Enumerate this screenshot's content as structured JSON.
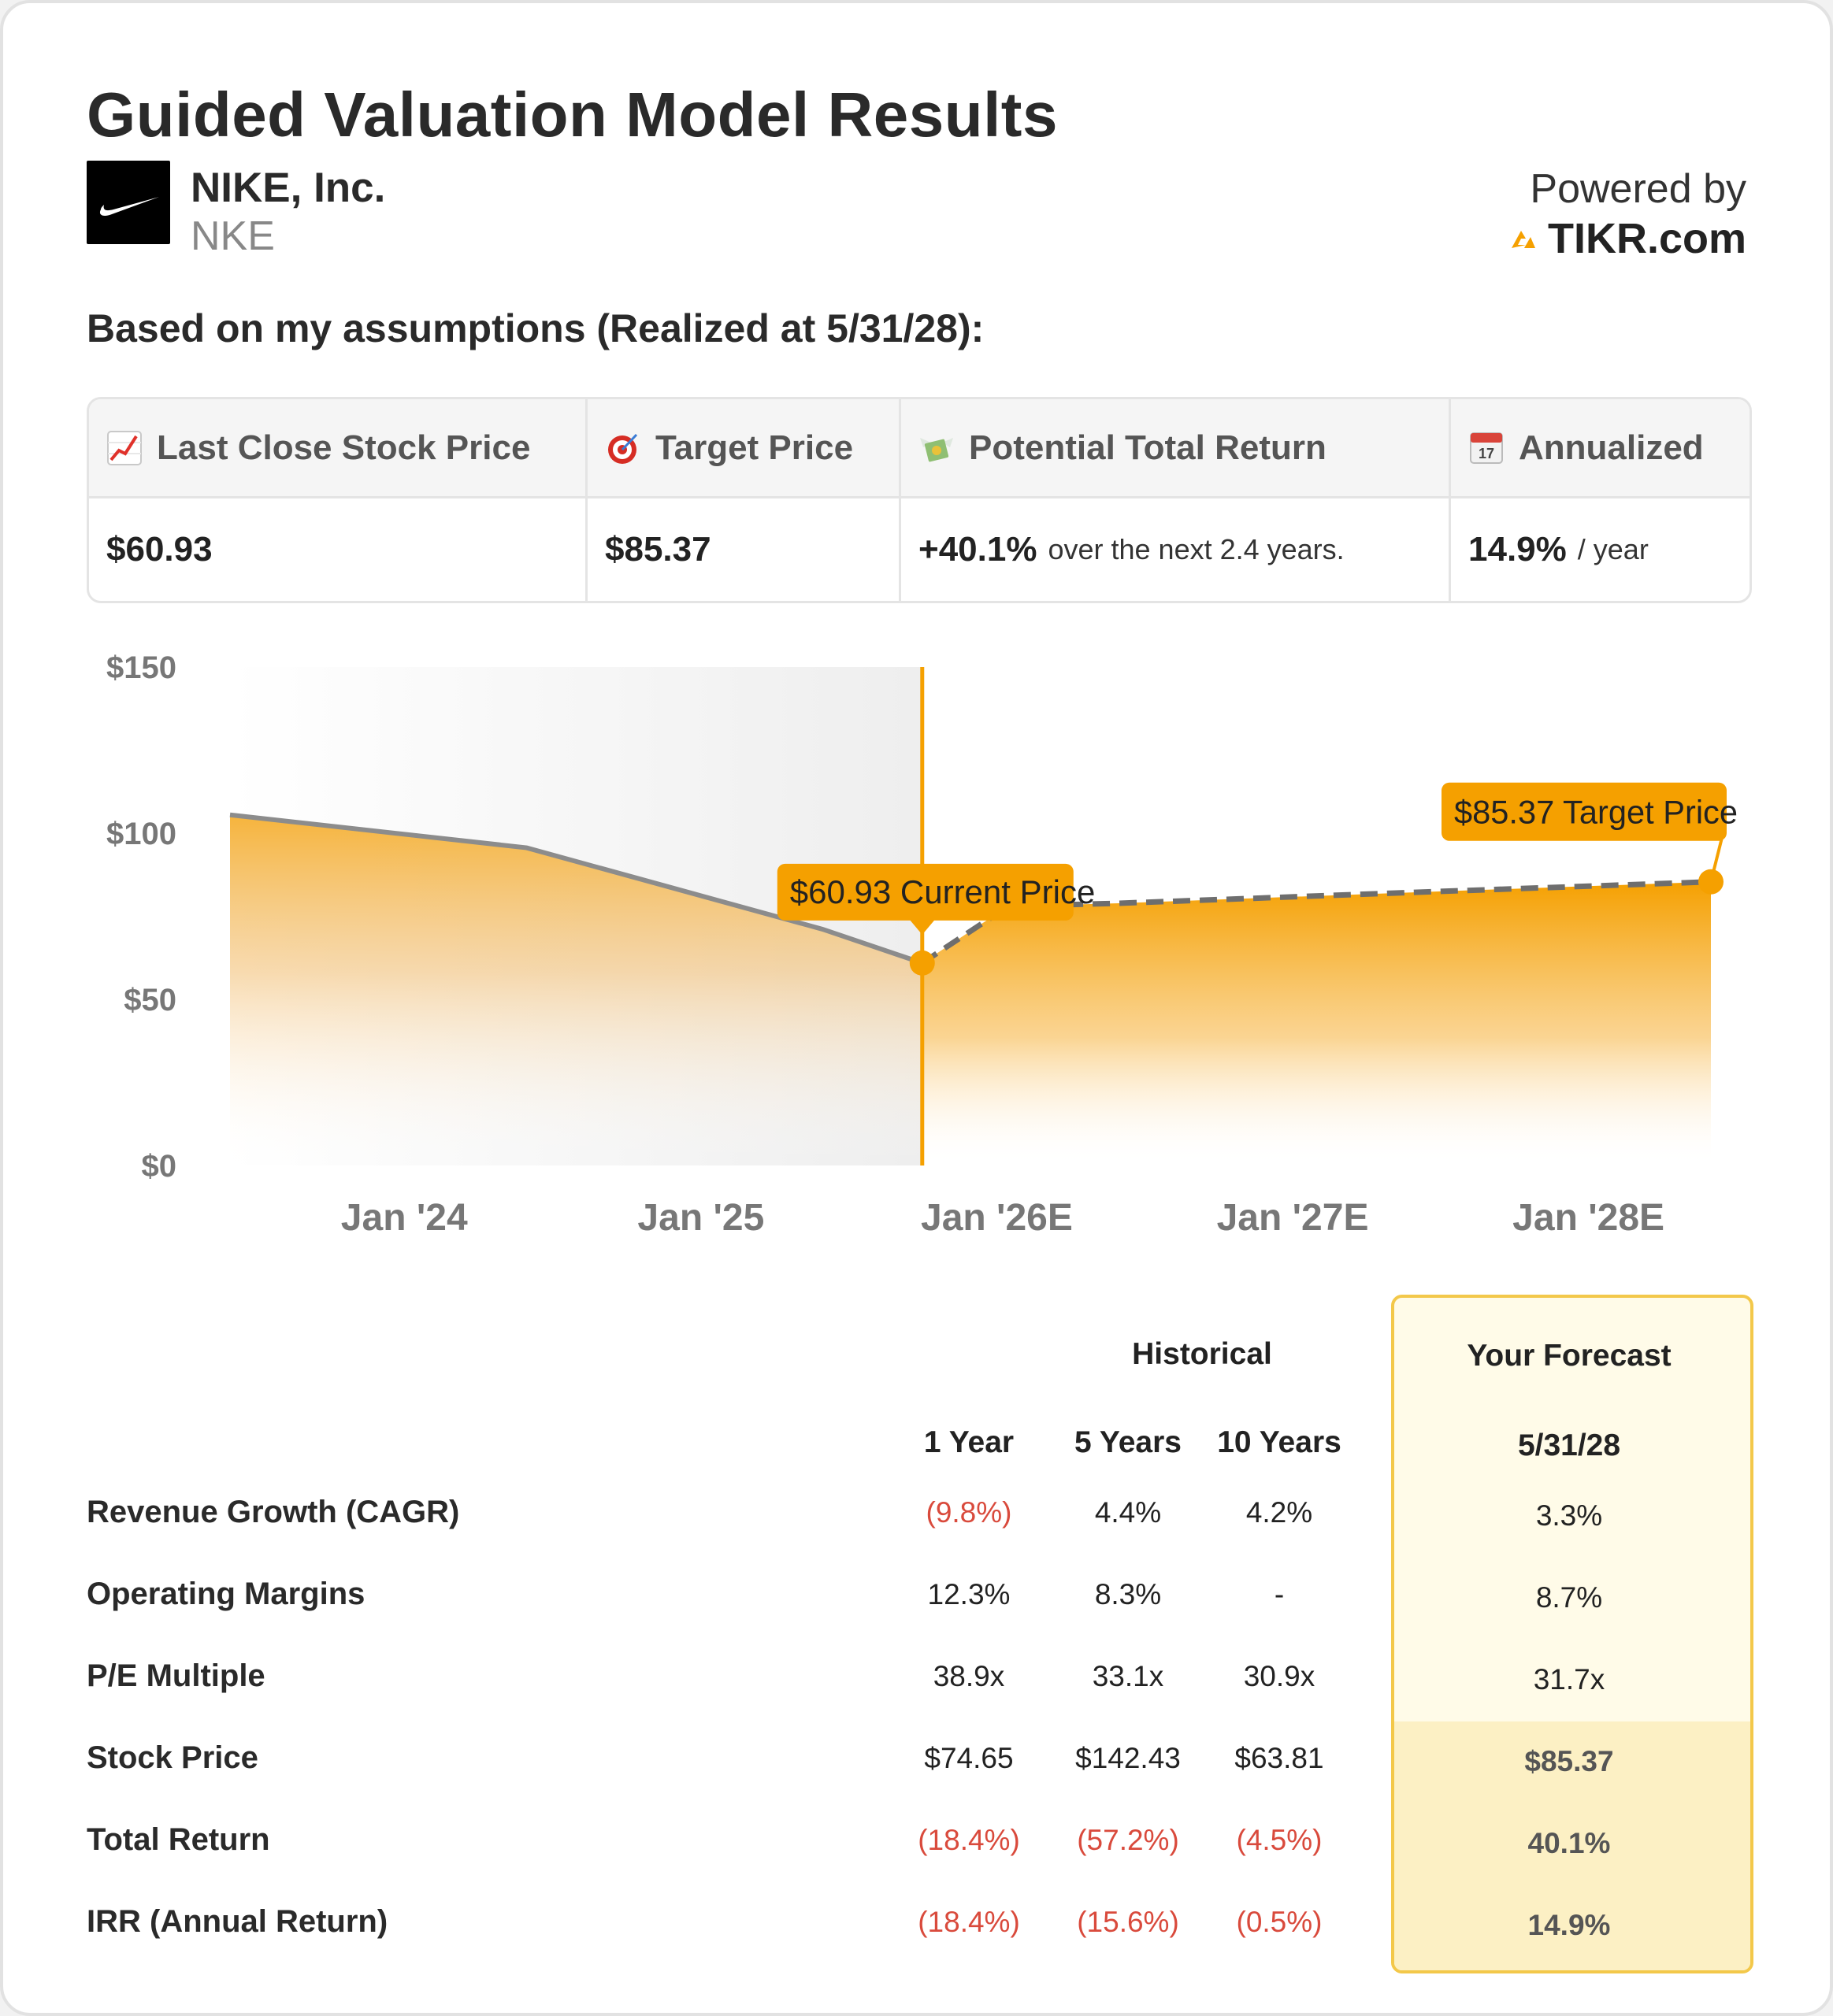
{
  "header": {
    "title": "Guided Valuation Model Results",
    "company_name": "NIKE, Inc.",
    "ticker": "NKE",
    "powered_by": "Powered by",
    "brand": "TIKR.com",
    "assumptions": "Based on my assumptions (Realized at 5/31/28):"
  },
  "kpis": [
    {
      "icon": "chart-increasing-icon",
      "label": "Last Close Stock Price",
      "value": "$60.93",
      "suffix": ""
    },
    {
      "icon": "target-icon",
      "label": "Target Price",
      "value": "$85.37",
      "suffix": ""
    },
    {
      "icon": "money-wings-icon",
      "label": "Potential Total Return",
      "value": "+40.1%",
      "suffix": "over the next 2.4 years."
    },
    {
      "icon": "calendar-icon",
      "label": "Annualized",
      "value": "14.9%",
      "suffix": "/ year"
    }
  ],
  "chart_data": {
    "type": "area",
    "y_ticks": [
      "$150",
      "$100",
      "$50",
      "$0"
    ],
    "ylim": [
      0,
      150
    ],
    "x_ticks": [
      "Jan '24",
      "Jan '25",
      "Jan '26E",
      "Jan '27E",
      "Jan '28E"
    ],
    "historical": {
      "x": [
        "2023-05-31",
        "2024-05-31",
        "2025-05-31",
        "2025-10-01"
      ],
      "y": [
        105.5,
        95.6,
        71.1,
        60.93
      ]
    },
    "forecast": {
      "x": [
        "2025-10-01",
        "2026-01-15",
        "2026-05-31",
        "2027-05-31",
        "2028-05-31"
      ],
      "y": [
        60.93,
        78.0,
        78.9,
        82.2,
        85.37
      ]
    },
    "current": {
      "x": "2025-10-01",
      "y": 60.93,
      "label": "$60.93 Current Price"
    },
    "target": {
      "x": "2028-05-31",
      "y": 85.37,
      "label": "$85.37 Target Price"
    },
    "accent_color": "#f5a000",
    "line_color": "#8c8c8c"
  },
  "table": {
    "historical_label": "Historical",
    "forecast_label": "Your Forecast",
    "columns": [
      "1 Year",
      "5 Years",
      "10 Years"
    ],
    "forecast_date": "5/31/28",
    "rows": [
      {
        "label": "Revenue Growth (CAGR)",
        "values": [
          "(9.8%)",
          "4.4%",
          "4.2%"
        ],
        "forecast": "3.3%"
      },
      {
        "label": "Operating Margins",
        "values": [
          "12.3%",
          "8.3%",
          "-"
        ],
        "forecast": "8.7%"
      },
      {
        "label": "P/E Multiple",
        "values": [
          "38.9x",
          "33.1x",
          "30.9x"
        ],
        "forecast": "31.7x"
      },
      {
        "label": "Stock Price",
        "values": [
          "$74.65",
          "$142.43",
          "$63.81"
        ],
        "forecast": "$85.37"
      },
      {
        "label": "Total Return",
        "values": [
          "(18.4%)",
          "(57.2%)",
          "(4.5%)"
        ],
        "forecast": "40.1%"
      },
      {
        "label": "IRR (Annual Return)",
        "values": [
          "(18.4%)",
          "(15.6%)",
          "(0.5%)"
        ],
        "forecast": "14.9%"
      }
    ]
  }
}
